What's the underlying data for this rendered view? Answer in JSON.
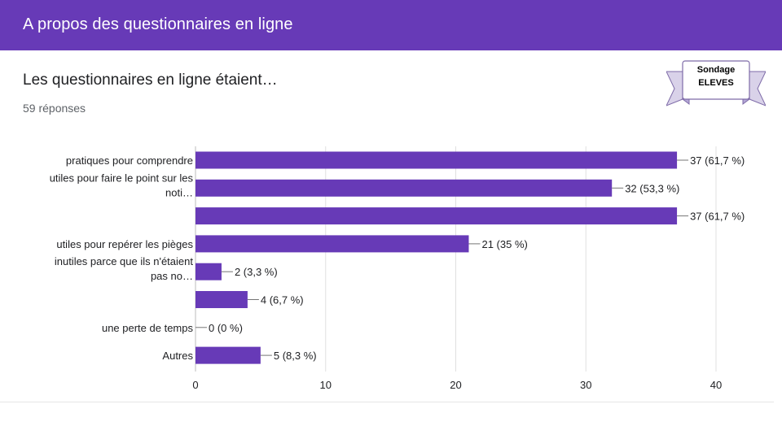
{
  "header": {
    "title": "A propos des questionnaires en ligne"
  },
  "question": {
    "title": "Les questionnaires en ligne étaient…",
    "responses": "59 réponses"
  },
  "badge": {
    "line1": "Sondage",
    "line2": "ELEVES"
  },
  "colors": {
    "header": "#673ab7",
    "bar": "#673ab7",
    "grid": "#e0e0e0"
  },
  "chart_data": {
    "type": "bar",
    "orientation": "horizontal",
    "categories": [
      [
        "pratiques pour comprendre"
      ],
      [
        "utiles pour faire le point sur les",
        "noti…"
      ],
      [],
      [
        "utiles pour repérer les pièges"
      ],
      [
        "inutiles parce que ils n'étaient",
        "pas no…"
      ],
      [],
      [
        "une perte de temps"
      ],
      [
        "Autres"
      ]
    ],
    "values": [
      37,
      32,
      37,
      21,
      2,
      4,
      0,
      5
    ],
    "value_labels": [
      "37 (61,7 %)",
      "32 (53,3 %)",
      "37 (61,7 %)",
      "21 (35 %)",
      "2 (3,3 %)",
      "4 (6,7 %)",
      "0 (0 %)",
      "5 (8,3 %)"
    ],
    "xlim": [
      0,
      40
    ],
    "xticks": [
      "0",
      "10",
      "20",
      "30",
      "40"
    ],
    "grid": true
  }
}
